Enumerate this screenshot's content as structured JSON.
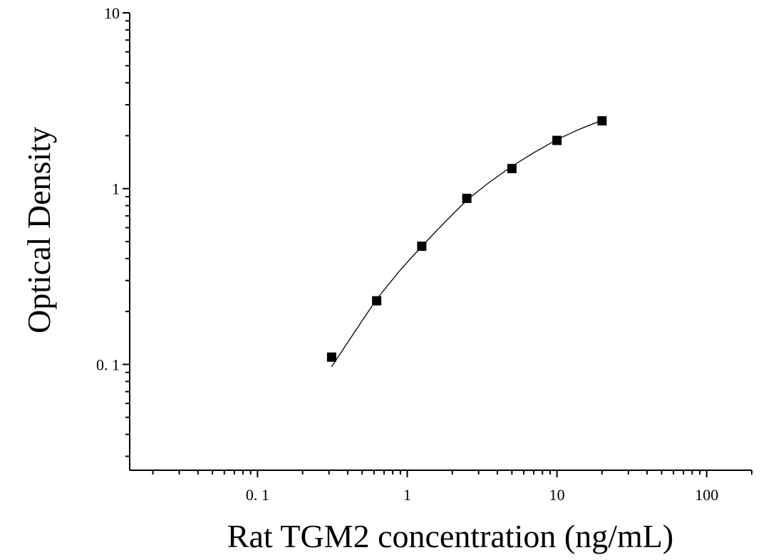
{
  "chart_data": {
    "type": "scatter",
    "title": "",
    "xlabel": "Rat TGM2 concentration (ng/mL)",
    "ylabel": "Optical Density",
    "x_scale": "log",
    "y_scale": "log",
    "xlim": [
      0.014,
      200
    ],
    "ylim": [
      0.025,
      10
    ],
    "x_ticks": [
      {
        "value": 0.1,
        "label": "0. 1"
      },
      {
        "value": 1,
        "label": "1"
      },
      {
        "value": 10,
        "label": "10"
      },
      {
        "value": 100,
        "label": "100"
      }
    ],
    "y_ticks": [
      {
        "value": 0.1,
        "label": "0. 1"
      },
      {
        "value": 1,
        "label": "1"
      },
      {
        "value": 10,
        "label": "10"
      }
    ],
    "grid": false,
    "legend": "none",
    "series": [
      {
        "marker": "square",
        "color": "#000000",
        "points": [
          {
            "x": 0.3125,
            "y": 0.11
          },
          {
            "x": 0.625,
            "y": 0.23
          },
          {
            "x": 1.25,
            "y": 0.47
          },
          {
            "x": 2.5,
            "y": 0.88
          },
          {
            "x": 5,
            "y": 1.3
          },
          {
            "x": 10,
            "y": 1.88
          },
          {
            "x": 20,
            "y": 2.43
          }
        ]
      }
    ],
    "fit_curve": {
      "color": "#000000",
      "points": [
        {
          "x": 0.3125,
          "y": 0.097
        },
        {
          "x": 0.45,
          "y": 0.155
        },
        {
          "x": 0.625,
          "y": 0.235
        },
        {
          "x": 0.9,
          "y": 0.345
        },
        {
          "x": 1.25,
          "y": 0.47
        },
        {
          "x": 1.8,
          "y": 0.65
        },
        {
          "x": 2.5,
          "y": 0.86
        },
        {
          "x": 3.5,
          "y": 1.08
        },
        {
          "x": 5,
          "y": 1.34
        },
        {
          "x": 7,
          "y": 1.6
        },
        {
          "x": 10,
          "y": 1.9
        },
        {
          "x": 14,
          "y": 2.17
        },
        {
          "x": 20,
          "y": 2.45
        }
      ]
    }
  }
}
